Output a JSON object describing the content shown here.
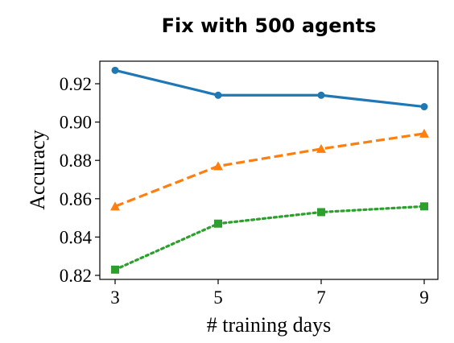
{
  "chart_data": {
    "type": "line",
    "title": "Fix with 500 agents",
    "xlabel": "# training days",
    "ylabel": "Accuracy",
    "x": [
      3,
      5,
      7,
      9
    ],
    "x_ticks": [
      "3",
      "5",
      "7",
      "9"
    ],
    "y_ticks": [
      "0.82",
      "0.84",
      "0.86",
      "0.88",
      "0.90",
      "0.92"
    ],
    "xlim": [
      3,
      9
    ],
    "ylim": [
      0.82,
      0.93
    ],
    "grid": false,
    "series": [
      {
        "values": [
          0.927,
          0.914,
          0.914,
          0.908
        ],
        "color": "#1f77b4",
        "linestyle": "solid",
        "marker": "circle"
      },
      {
        "values": [
          0.856,
          0.877,
          0.886,
          0.894
        ],
        "color": "#ff7f0e",
        "linestyle": "dashed",
        "marker": "triangle"
      },
      {
        "values": [
          0.823,
          0.847,
          0.853,
          0.856
        ],
        "color": "#2ca02c",
        "linestyle": "dotted",
        "marker": "square"
      }
    ]
  }
}
